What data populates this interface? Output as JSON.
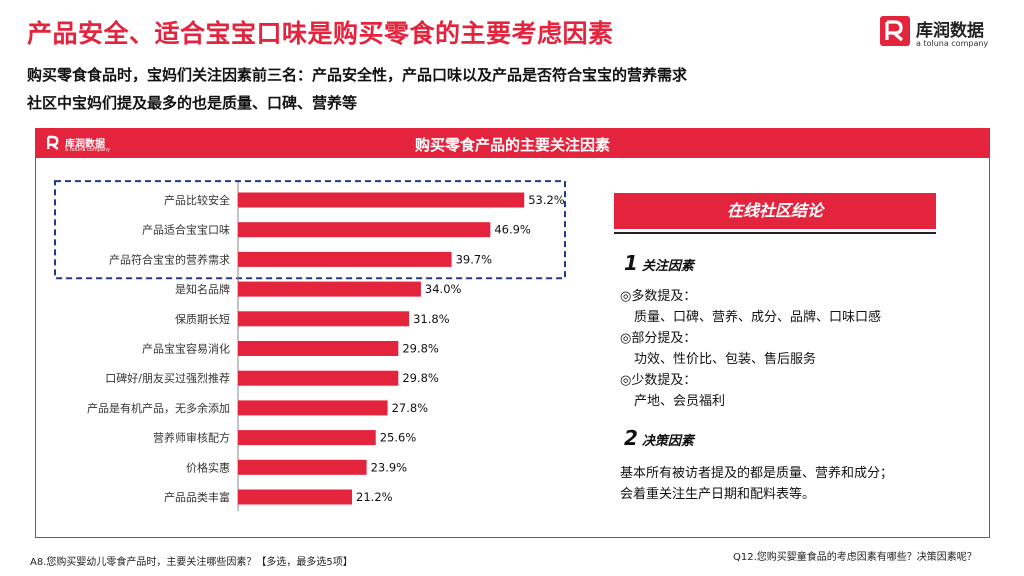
{
  "header": {
    "title": "产品安全、适合宝宝口味是购买零食的主要考虑因素",
    "subtitle_1": "购买零食食品时，宝妈们关注因素前三名：产品安全性，产品口味以及产品是否符合宝宝的营养需求",
    "subtitle_2": "社区中宝妈们提及最多的也是质量、口碑、营养等"
  },
  "brand": {
    "name": "库润数据",
    "tagline": "a toluna company",
    "color": "#e4233c"
  },
  "panel": {
    "title": "购买零食产品的主要关注因素",
    "logo_name": "库润数据",
    "logo_tagline": "a toluna company"
  },
  "chart_data": {
    "type": "bar",
    "orientation": "horizontal",
    "categories": [
      "产品比较安全",
      "产品适合宝宝口味",
      "产品符合宝宝的营养需求",
      "是知名品牌",
      "保质期长短",
      "产品宝宝容易消化",
      "口碑好/朋友买过强烈推荐",
      "产品是有机产品，无多余添加",
      "营养师审核配方",
      "价格实惠",
      "产品品类丰富"
    ],
    "values": [
      53.2,
      46.9,
      39.7,
      34.0,
      31.8,
      29.8,
      29.8,
      27.8,
      25.6,
      23.9,
      21.2
    ],
    "value_labels": [
      "53.2%",
      "46.9%",
      "39.7%",
      "34.0%",
      "31.8%",
      "29.8%",
      "29.8%",
      "27.8%",
      "25.6%",
      "23.9%",
      "21.2%"
    ],
    "highlighted_top": 3,
    "bar_color": "#e4233c",
    "highlight_border_color": "#1f3a8a"
  },
  "conclusion": {
    "title": "在线社区结论",
    "section1_num": "1",
    "section1_title": "关注因素",
    "s1_l1": "◎多数提及：",
    "s1_l2": "质量、口碑、营养、成分、品牌、口味口感",
    "s1_l3": "◎部分提及：",
    "s1_l4": "功效、性价比、包装、售后服务",
    "s1_l5": "◎少数提及：",
    "s1_l6": "产地、会员福利",
    "section2_num": "2",
    "section2_title": "决策因素",
    "s2_l1": "基本所有被访者提及的都是质量、营养和成分；",
    "s2_l2": "会着重关注生产日期和配料表等。"
  },
  "footer": {
    "left_note": "A8.您购买婴幼儿零食产品时，主要关注哪些因素？【多选，最多选5项】",
    "right_note": "Q12.您购买婴童食品的考虑因素有哪些？决策因素呢？"
  }
}
